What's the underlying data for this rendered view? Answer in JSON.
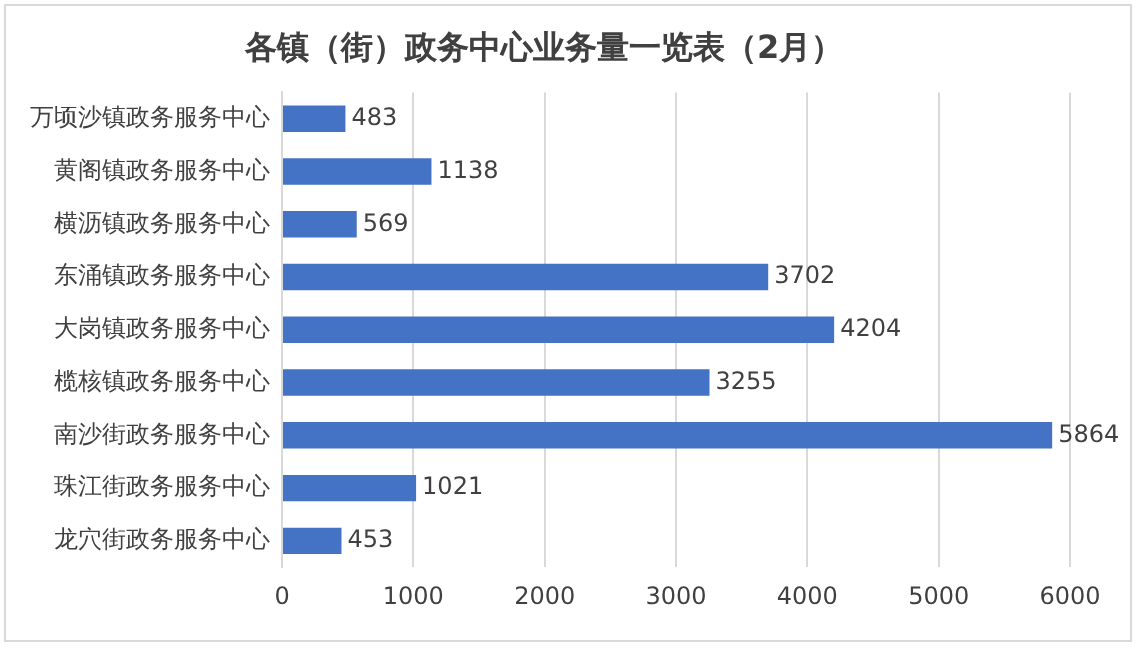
{
  "chart_data": {
    "type": "bar",
    "orientation": "horizontal",
    "title": "各镇（街）政务中心业务量一览表（2月）",
    "categories": [
      "万顷沙镇政务服务中心",
      "黄阁镇政务服务中心",
      "横沥镇政务服务中心",
      "东涌镇政务服务中心",
      "大岗镇政务服务中心",
      "榄核镇政务服务中心",
      "南沙街政务服务中心",
      "珠江街政务服务中心",
      "龙穴街政务服务中心"
    ],
    "values": [
      483,
      1138,
      569,
      3702,
      4204,
      3255,
      5864,
      1021,
      453
    ],
    "color": "#4472c4",
    "xlim": [
      0,
      6000
    ],
    "xticks": [
      0,
      1000,
      2000,
      3000,
      4000,
      5000,
      6000
    ],
    "grid": "x",
    "data_labels": true
  }
}
